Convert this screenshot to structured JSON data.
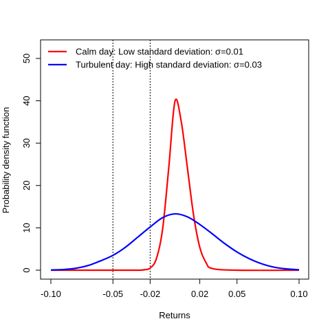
{
  "chart_data": {
    "type": "line",
    "title": "",
    "xlabel": "Returns",
    "ylabel": "Probability density function",
    "xlim": [
      -0.1,
      0.1
    ],
    "ylim": [
      0,
      50
    ],
    "x_ticks": [
      -0.1,
      -0.05,
      -0.02,
      0.02,
      0.05,
      0.1
    ],
    "x_tick_labels": [
      "-0.10",
      "-0.05",
      "-0.02",
      "0.02",
      "0.05",
      "0.10"
    ],
    "y_ticks": [
      0,
      10,
      20,
      30,
      40,
      50
    ],
    "y_tick_labels": [
      "0",
      "10",
      "20",
      "30",
      "40",
      "50"
    ],
    "grid": false,
    "legend_position": "top-left",
    "vlines": [
      -0.05,
      -0.02
    ],
    "series": [
      {
        "name": "Calm day: Low standard deviation: σ=0.01",
        "color": "#ff0000",
        "x": [
          -0.1,
          -0.05,
          -0.03,
          -0.025,
          -0.02,
          -0.015,
          -0.01,
          -0.005,
          0.0,
          0.005,
          0.01,
          0.015,
          0.02,
          0.025,
          0.03,
          0.05,
          0.1
        ],
        "y": [
          0,
          0,
          0.0,
          0.1,
          0.5,
          2.7,
          9.6,
          24.2,
          39.9,
          35.2,
          24.2,
          13.0,
          5.4,
          1.8,
          0.4,
          0,
          0
        ]
      },
      {
        "name": "Turbulent day: High standard deviation: σ=0.03",
        "color": "#0000ff",
        "x": [
          -0.1,
          -0.09,
          -0.08,
          -0.07,
          -0.06,
          -0.05,
          -0.04,
          -0.03,
          -0.02,
          -0.01,
          0.0,
          0.01,
          0.02,
          0.03,
          0.04,
          0.05,
          0.06,
          0.07,
          0.08,
          0.09,
          0.1
        ],
        "y": [
          0.05,
          0.15,
          0.45,
          1.1,
          2.2,
          3.5,
          5.4,
          7.8,
          10.2,
          12.4,
          13.3,
          12.6,
          10.8,
          8.6,
          6.3,
          4.3,
          2.7,
          1.5,
          0.7,
          0.3,
          0.1
        ]
      }
    ]
  }
}
